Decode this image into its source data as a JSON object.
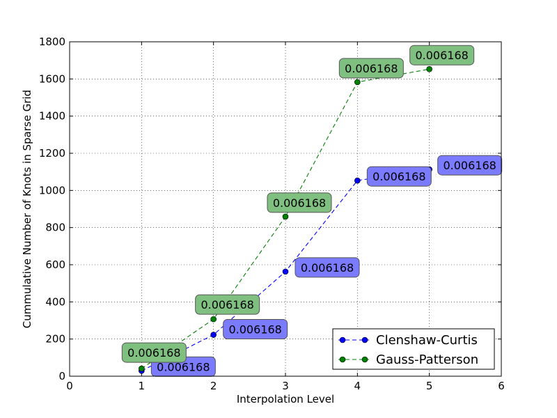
{
  "chart_data": {
    "type": "line",
    "title": "",
    "xlabel": "Interpolation Level",
    "ylabel": "Cummulative Number of Knots in Sparse Grid",
    "xlim": [
      0,
      6
    ],
    "ylim": [
      0,
      1800
    ],
    "xticks": [
      "0",
      "1",
      "2",
      "3",
      "4",
      "5",
      "6"
    ],
    "yticks": [
      "0",
      "200",
      "400",
      "600",
      "800",
      "1000",
      "1200",
      "1400",
      "1600",
      "1800"
    ],
    "grid": true,
    "legend_position": "bottom-right",
    "series": [
      {
        "name": "Clenshaw-Curtis",
        "color": "#0000ff",
        "marker": "circle",
        "line_style": "dashed",
        "x": [
          1,
          2,
          3,
          4,
          5
        ],
        "y": [
          29,
          223,
          563,
          1053,
          1113
        ],
        "labels": [
          "0.006168",
          "0.006168",
          "0.006168",
          "0.006168",
          "0.006168"
        ],
        "label_color": "#7b7bff"
      },
      {
        "name": "Gauss-Patterson",
        "color": "#008000",
        "marker": "circle",
        "line_style": "dashed",
        "x": [
          1,
          2,
          3,
          4,
          5
        ],
        "y": [
          41,
          307,
          859,
          1583,
          1653
        ],
        "labels": [
          "0.006168",
          "0.006168",
          "0.006168",
          "0.006168",
          "0.006168"
        ],
        "label_color": "#7fbf7f"
      }
    ]
  }
}
